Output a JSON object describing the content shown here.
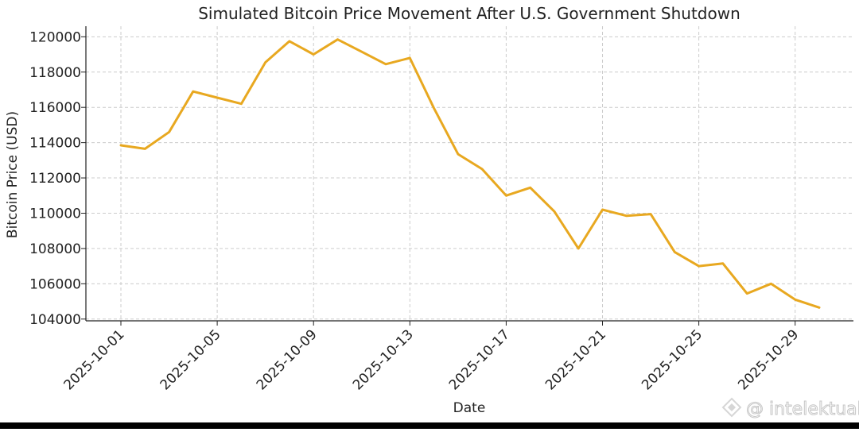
{
  "chart_data": {
    "type": "line",
    "title": "Simulated Bitcoin Price Movement After U.S. Government Shutdown",
    "xlabel": "Date",
    "ylabel": "Bitcoin Price (USD)",
    "ylim": [
      103900,
      120600
    ],
    "grid": true,
    "line_color": "#e8a820",
    "x_tick_labels": [
      "2025-10-01",
      "2025-10-05",
      "2025-10-09",
      "2025-10-13",
      "2025-10-17",
      "2025-10-21",
      "2025-10-25",
      "2025-10-29"
    ],
    "y_ticks": [
      104000,
      106000,
      108000,
      110000,
      112000,
      114000,
      116000,
      118000,
      120000
    ],
    "x": [
      "2025-10-01",
      "2025-10-02",
      "2025-10-03",
      "2025-10-04",
      "2025-10-05",
      "2025-10-06",
      "2025-10-07",
      "2025-10-08",
      "2025-10-09",
      "2025-10-10",
      "2025-10-11",
      "2025-10-12",
      "2025-10-13",
      "2025-10-14",
      "2025-10-15",
      "2025-10-16",
      "2025-10-17",
      "2025-10-18",
      "2025-10-19",
      "2025-10-20",
      "2025-10-21",
      "2025-10-22",
      "2025-10-23",
      "2025-10-24",
      "2025-10-25",
      "2025-10-26",
      "2025-10-27",
      "2025-10-28",
      "2025-10-29",
      "2025-10-30"
    ],
    "values": [
      113850,
      113650,
      114600,
      116900,
      116550,
      116200,
      118550,
      119750,
      119000,
      119850,
      119150,
      118450,
      118800,
      115950,
      113350,
      112500,
      111000,
      111450,
      110100,
      108000,
      110200,
      109850,
      109950,
      107800,
      107000,
      107150,
      105450,
      106000,
      105100,
      104650
    ]
  },
  "watermark": {
    "text": "@ intelektual",
    "icon": "intelektual-logo-icon"
  }
}
